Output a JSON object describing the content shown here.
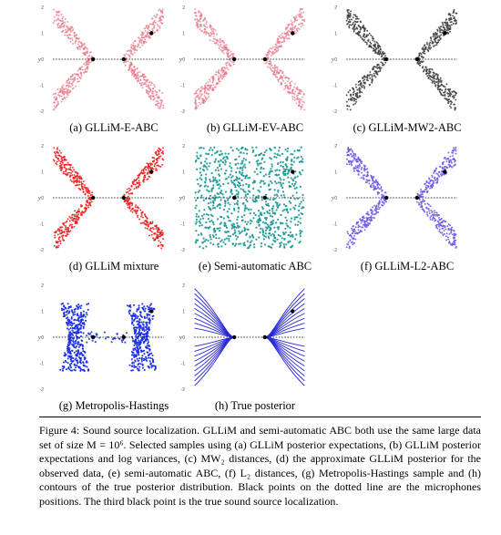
{
  "colors": {
    "light_red": "#e8788a",
    "red": "#ee1c1c",
    "gray": "#3f3f46",
    "teal": "#1f9a96",
    "violet": "#6a5ae8",
    "blue": "#1a2ee6",
    "line_blue": "#2828d8"
  },
  "axis": {
    "ylabel": "y",
    "yticks": [
      "2",
      "1",
      "0",
      "-1",
      "-2"
    ]
  },
  "panels": [
    {
      "caption": "(a) GLLiM-E-ABC",
      "style": "light_red",
      "kind": "x-shape"
    },
    {
      "caption": "(b) GLLiM-EV-ABC",
      "style": "light_red",
      "kind": "x-shape"
    },
    {
      "caption": "(c) GLLiM-MW2-ABC",
      "style": "gray",
      "kind": "x-shape"
    },
    {
      "caption": "(d) GLLiM mixture",
      "style": "red",
      "kind": "x-shape"
    },
    {
      "caption": "(e) Semi-automatic ABC",
      "style": "teal",
      "kind": "uniform"
    },
    {
      "caption": "(f) GLLiM-L2-ABC",
      "style": "violet",
      "kind": "x-shape"
    },
    {
      "caption": "(g) Metropolis-Hastings",
      "style": "blue",
      "kind": "columns"
    },
    {
      "caption": "(h) True posterior",
      "style": "line_blue",
      "kind": "contours"
    }
  ],
  "figure_caption": "Figure 4:  Sound source localization. GLLiM and semi-automatic ABC both use the same large data set of size M = 10⁶. Selected samples using (a) GLLiM posterior expectations, (b) GLLiM posterior expectations and log variances, (c) MW₂ distances, (d) the approximate GLLiM posterior for the observed data, (e) semi-automatic ABC, (f) L₂ distances, (g) Metropolis-Hastings sample and (h) contours of the true posterior distribution. Black points on the dotted line are the microphones positions. The third black point is the true sound source localization."
}
